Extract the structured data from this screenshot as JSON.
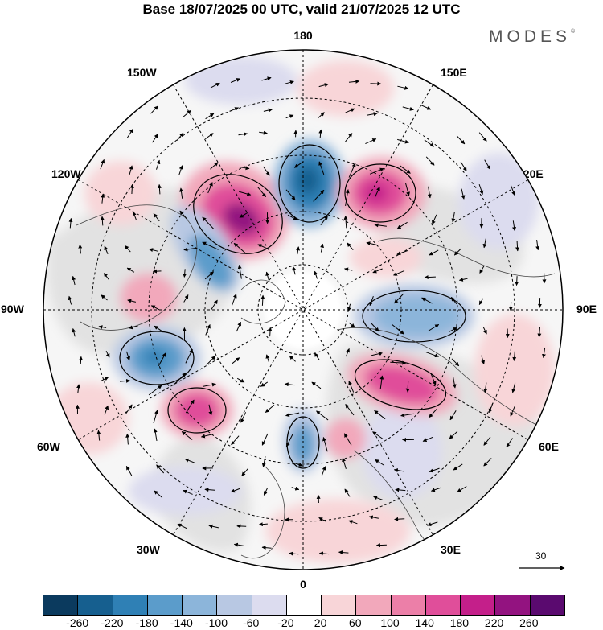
{
  "title": "Base 18/07/2025 00 UTC, valid 21/07/2025 12 UTC",
  "brand": "MODES",
  "brand_mark": "©",
  "longitude_labels": {
    "n180": "180",
    "w150": "150W",
    "e150": "150E",
    "w120": "120W",
    "e120": "120E",
    "w90": "90W",
    "e90": "90E",
    "w60": "60W",
    "e60": "60E",
    "w30": "30W",
    "e30": "30E",
    "s0": "0"
  },
  "vector_scale_label": "30",
  "colorbar": {
    "ticks": [
      "-260",
      "-220",
      "-180",
      "-140",
      "-100",
      "-60",
      "-20",
      "20",
      "60",
      "100",
      "140",
      "180",
      "220",
      "260"
    ],
    "colors": [
      "#0b3a5e",
      "#165f8f",
      "#2f80b5",
      "#5b9ccb",
      "#8cb5da",
      "#b8c8e3",
      "#dcdcef",
      "#ffffff",
      "#f8d5d8",
      "#f2a8bb",
      "#ec7fa8",
      "#e04e9a",
      "#c41f8a",
      "#931380",
      "#5a0a6f"
    ]
  },
  "anomaly_centers": [
    {
      "lon_label": "150W-120W",
      "sign": "positive",
      "level": 220
    },
    {
      "lon_label": "180",
      "sign": "negative",
      "level": -220
    },
    {
      "lon_label": "150E-120E",
      "sign": "positive",
      "level": 220
    },
    {
      "lon_label": "120W-90W",
      "sign": "negative",
      "level": -140
    },
    {
      "lon_label": "90E",
      "sign": "negative",
      "level": -100
    },
    {
      "lon_label": "90W-60W",
      "sign": "negative",
      "level": -180
    },
    {
      "lon_label": "60E-30E",
      "sign": "positive",
      "level": 180
    },
    {
      "lon_label": "60W-30W",
      "sign": "positive",
      "level": 180
    },
    {
      "lon_label": "0",
      "sign": "negative",
      "level": -100
    }
  ]
}
